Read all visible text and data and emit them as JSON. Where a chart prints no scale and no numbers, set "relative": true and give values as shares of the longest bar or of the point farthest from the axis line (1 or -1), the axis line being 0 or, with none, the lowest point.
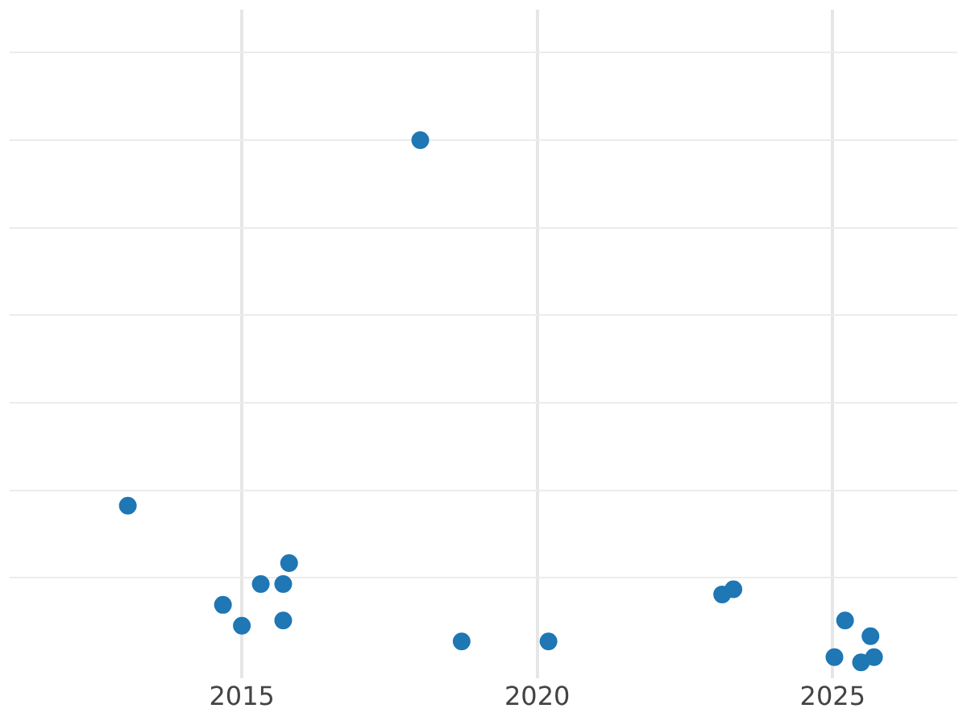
{
  "chart_data": {
    "type": "scatter",
    "relative": true,
    "x": [
      2013.07,
      2014.68,
      2015.0,
      2015.32,
      2015.7,
      2015.7,
      2015.8,
      2018.02,
      2018.72,
      2020.19,
      2023.13,
      2023.32,
      2025.03,
      2025.21,
      2025.48,
      2025.64,
      2025.7
    ],
    "series": [
      {
        "color": "#1f77b4",
        "values": [
          0.3,
          0.11,
          0.07,
          0.15,
          0.15,
          0.08,
          0.19,
          1,
          0.04,
          0.04,
          0.13,
          0.14,
          0.01,
          0.08,
          0,
          0.05,
          0.01
        ]
      }
    ],
    "xlim": [
      2011.07,
      2027.11
    ],
    "xticks": [
      2015,
      2020,
      2025
    ],
    "grid": true,
    "marker": "circle",
    "legend": false
  }
}
